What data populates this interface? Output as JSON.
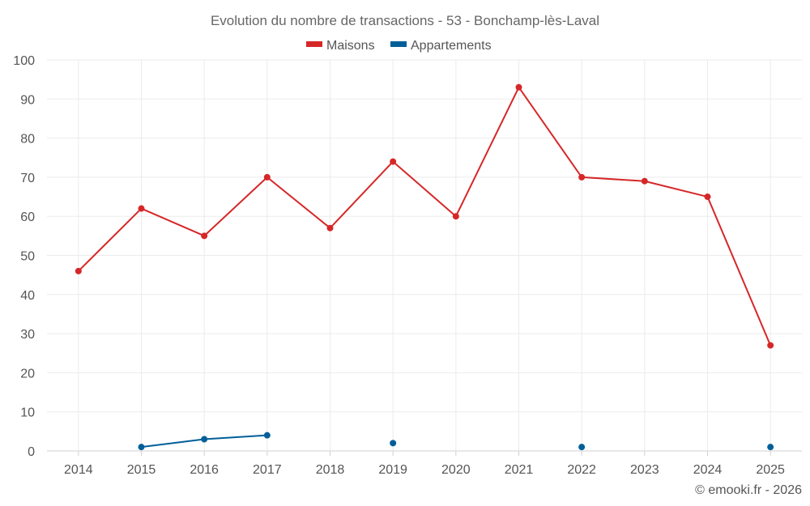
{
  "chart_data": {
    "type": "line",
    "title": "Evolution du nombre de transactions - 53 - Bonchamp-lès-Laval",
    "categories": [
      "2014",
      "2015",
      "2016",
      "2017",
      "2018",
      "2019",
      "2020",
      "2021",
      "2022",
      "2023",
      "2024",
      "2025"
    ],
    "series": [
      {
        "name": "Maisons",
        "color": "#d62728",
        "values": [
          46,
          62,
          55,
          70,
          57,
          74,
          60,
          93,
          70,
          69,
          65,
          27
        ]
      },
      {
        "name": "Appartements",
        "color": "#005f99",
        "values": [
          null,
          1,
          3,
          4,
          null,
          2,
          null,
          null,
          1,
          null,
          null,
          1
        ]
      }
    ],
    "ylim": [
      0,
      100
    ],
    "yticks": [
      0,
      10,
      20,
      30,
      40,
      50,
      60,
      70,
      80,
      90,
      100
    ],
    "legend": "top-center",
    "grid": true,
    "credit": "© emooki.fr - 2026"
  }
}
